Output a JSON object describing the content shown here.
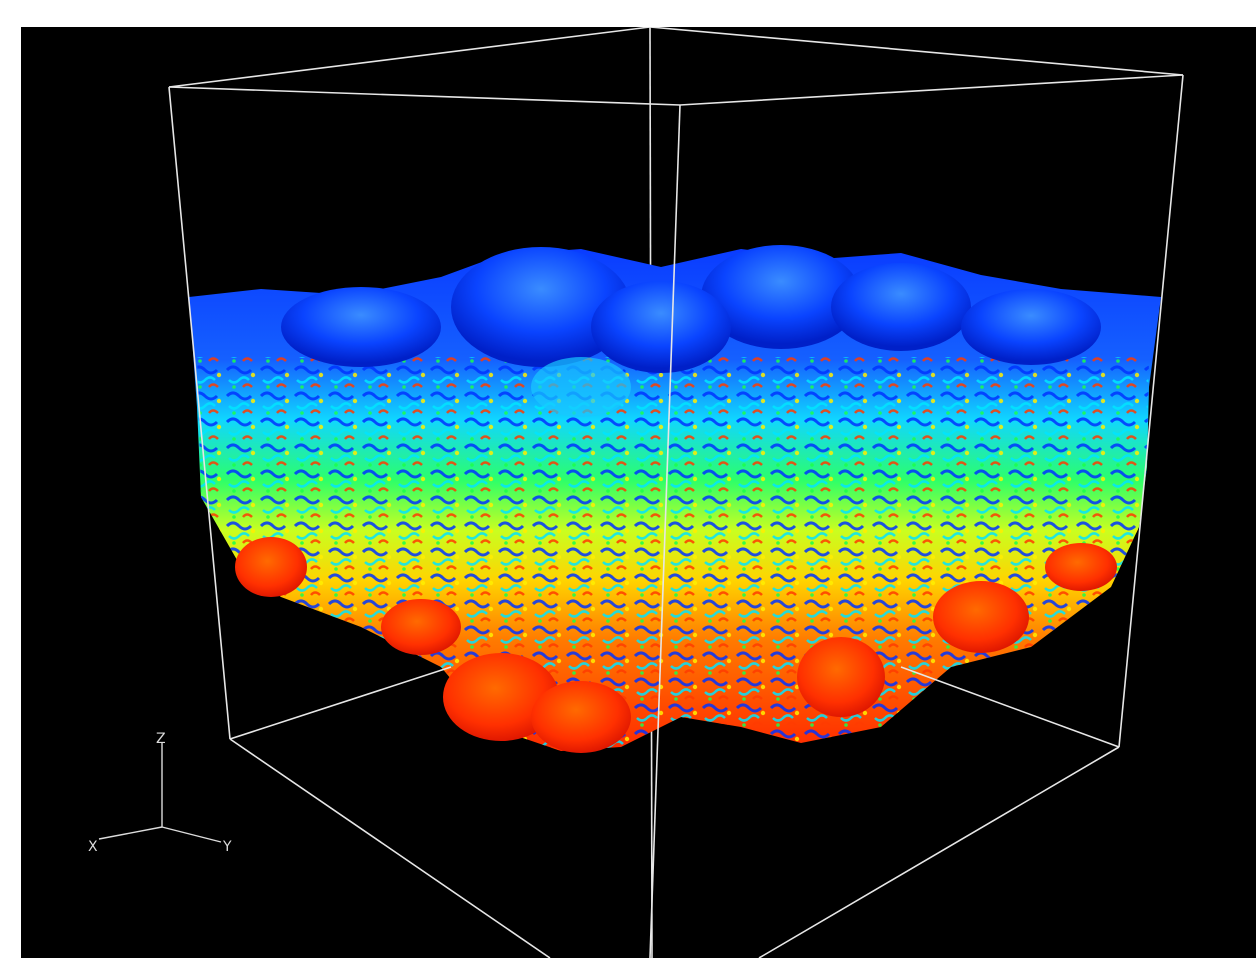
{
  "viewer": {
    "background_color": "#000000",
    "outline_color": "#e6e6e6",
    "colormap": [
      "#0000ff",
      "#00bfff",
      "#00ff7f",
      "#ffff00",
      "#ff8000",
      "#ff2000"
    ],
    "axes_triad": {
      "z_label": "Z",
      "x_label": "X",
      "y_label": "Y"
    }
  }
}
